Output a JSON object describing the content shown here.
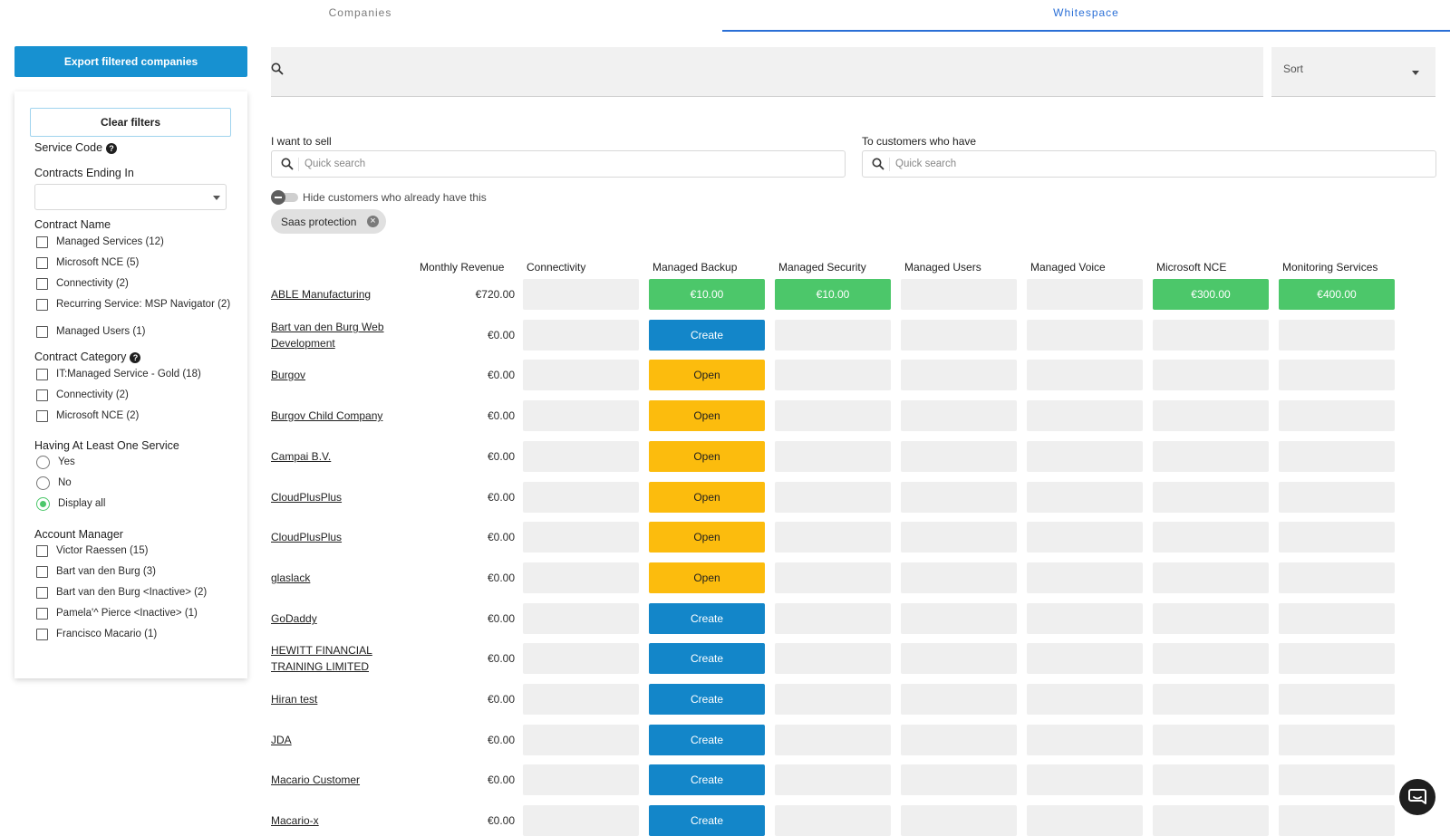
{
  "tabs": {
    "companies": "Companies",
    "whitespace": "Whitespace"
  },
  "sidebar": {
    "export_label": "Export filtered companies",
    "clear_label": "Clear filters",
    "service_code_title": "Service Code",
    "contracts_ending_title": "Contracts Ending In",
    "contracts_ending_value": "",
    "contract_name_title": "Contract Name",
    "contract_names": [
      {
        "label": "Managed Services (12)",
        "checked": false
      },
      {
        "label": "Microsoft NCE (5)",
        "checked": false
      },
      {
        "label": "Connectivity (2)",
        "checked": false
      },
      {
        "label": "Recurring Service: MSP Navigator (2)",
        "checked": false
      },
      {
        "label": "Managed Users (1)",
        "checked": false
      }
    ],
    "contract_category_title": "Contract Category",
    "contract_categories": [
      {
        "label": "IT:Managed Service - Gold (18)",
        "checked": false
      },
      {
        "label": "Connectivity (2)",
        "checked": false
      },
      {
        "label": "Microsoft NCE (2)",
        "checked": false
      }
    ],
    "at_least_one_title": "Having At Least One Service",
    "at_least_one_options": [
      {
        "label": "Yes",
        "checked": false
      },
      {
        "label": "No",
        "checked": false
      },
      {
        "label": "Display all",
        "checked": true
      }
    ],
    "account_manager_title": "Account Manager",
    "account_managers": [
      {
        "label": "Victor Raessen (15)",
        "checked": false
      },
      {
        "label": "Bart van den Burg (3)",
        "checked": false
      },
      {
        "label": "Bart van den Burg <Inactive> (2)",
        "checked": false
      },
      {
        "label": "Pamela'^ Pierce <Inactive> (1)",
        "checked": false
      },
      {
        "label": "Francisco Macario (1)",
        "checked": false
      }
    ]
  },
  "search": {
    "value": "",
    "sort_label": "Sort"
  },
  "sell": {
    "label": "I want to sell",
    "placeholder": "Quick search"
  },
  "customers_have": {
    "label": "To customers who have",
    "placeholder": "Quick search"
  },
  "hide_toggle": {
    "label": "Hide customers who already have this",
    "on": false
  },
  "chip": {
    "label": "Saas protection"
  },
  "table": {
    "columns": [
      "Monthly Revenue",
      "Connectivity",
      "Managed Backup",
      "Managed Security",
      "Managed Users",
      "Managed Voice",
      "Microsoft NCE",
      "Monitoring Services"
    ],
    "rows": [
      {
        "company": "ABLE Manufacturing",
        "revenue": "€720.00",
        "cells": [
          {
            "kind": "empty",
            "text": ""
          },
          {
            "kind": "green",
            "text": "€10.00"
          },
          {
            "kind": "green",
            "text": "€10.00"
          },
          {
            "kind": "empty",
            "text": ""
          },
          {
            "kind": "empty",
            "text": ""
          },
          {
            "kind": "green",
            "text": "€300.00"
          },
          {
            "kind": "green",
            "text": "€400.00"
          }
        ]
      },
      {
        "company": "Bart van den Burg Web Development",
        "revenue": "€0.00",
        "cells": [
          {
            "kind": "empty",
            "text": ""
          },
          {
            "kind": "create",
            "text": "Create"
          },
          {
            "kind": "empty",
            "text": ""
          },
          {
            "kind": "empty",
            "text": ""
          },
          {
            "kind": "empty",
            "text": ""
          },
          {
            "kind": "empty",
            "text": ""
          },
          {
            "kind": "empty",
            "text": ""
          }
        ]
      },
      {
        "company": "Burgov",
        "revenue": "€0.00",
        "cells": [
          {
            "kind": "empty",
            "text": ""
          },
          {
            "kind": "open",
            "text": "Open"
          },
          {
            "kind": "empty",
            "text": ""
          },
          {
            "kind": "empty",
            "text": ""
          },
          {
            "kind": "empty",
            "text": ""
          },
          {
            "kind": "empty",
            "text": ""
          },
          {
            "kind": "empty",
            "text": ""
          }
        ]
      },
      {
        "company": "Burgov Child Company",
        "revenue": "€0.00",
        "cells": [
          {
            "kind": "empty",
            "text": ""
          },
          {
            "kind": "open",
            "text": "Open"
          },
          {
            "kind": "empty",
            "text": ""
          },
          {
            "kind": "empty",
            "text": ""
          },
          {
            "kind": "empty",
            "text": ""
          },
          {
            "kind": "empty",
            "text": ""
          },
          {
            "kind": "empty",
            "text": ""
          }
        ]
      },
      {
        "company": "Campai B.V.",
        "revenue": "€0.00",
        "cells": [
          {
            "kind": "empty",
            "text": ""
          },
          {
            "kind": "open",
            "text": "Open"
          },
          {
            "kind": "empty",
            "text": ""
          },
          {
            "kind": "empty",
            "text": ""
          },
          {
            "kind": "empty",
            "text": ""
          },
          {
            "kind": "empty",
            "text": ""
          },
          {
            "kind": "empty",
            "text": ""
          }
        ]
      },
      {
        "company": "CloudPlusPlus",
        "revenue": "€0.00",
        "cells": [
          {
            "kind": "empty",
            "text": ""
          },
          {
            "kind": "open",
            "text": "Open"
          },
          {
            "kind": "empty",
            "text": ""
          },
          {
            "kind": "empty",
            "text": ""
          },
          {
            "kind": "empty",
            "text": ""
          },
          {
            "kind": "empty",
            "text": ""
          },
          {
            "kind": "empty",
            "text": ""
          }
        ]
      },
      {
        "company": "CloudPlusPlus",
        "revenue": "€0.00",
        "cells": [
          {
            "kind": "empty",
            "text": ""
          },
          {
            "kind": "open",
            "text": "Open"
          },
          {
            "kind": "empty",
            "text": ""
          },
          {
            "kind": "empty",
            "text": ""
          },
          {
            "kind": "empty",
            "text": ""
          },
          {
            "kind": "empty",
            "text": ""
          },
          {
            "kind": "empty",
            "text": ""
          }
        ]
      },
      {
        "company": "glaslack",
        "revenue": "€0.00",
        "cells": [
          {
            "kind": "empty",
            "text": ""
          },
          {
            "kind": "open",
            "text": "Open"
          },
          {
            "kind": "empty",
            "text": ""
          },
          {
            "kind": "empty",
            "text": ""
          },
          {
            "kind": "empty",
            "text": ""
          },
          {
            "kind": "empty",
            "text": ""
          },
          {
            "kind": "empty",
            "text": ""
          }
        ]
      },
      {
        "company": "GoDaddy",
        "revenue": "€0.00",
        "cells": [
          {
            "kind": "empty",
            "text": ""
          },
          {
            "kind": "create",
            "text": "Create"
          },
          {
            "kind": "empty",
            "text": ""
          },
          {
            "kind": "empty",
            "text": ""
          },
          {
            "kind": "empty",
            "text": ""
          },
          {
            "kind": "empty",
            "text": ""
          },
          {
            "kind": "empty",
            "text": ""
          }
        ]
      },
      {
        "company": "HEWITT FINANCIAL TRAINING LIMITED",
        "revenue": "€0.00",
        "cells": [
          {
            "kind": "empty",
            "text": ""
          },
          {
            "kind": "create",
            "text": "Create"
          },
          {
            "kind": "empty",
            "text": ""
          },
          {
            "kind": "empty",
            "text": ""
          },
          {
            "kind": "empty",
            "text": ""
          },
          {
            "kind": "empty",
            "text": ""
          },
          {
            "kind": "empty",
            "text": ""
          }
        ]
      },
      {
        "company": "Hiran test",
        "revenue": "€0.00",
        "cells": [
          {
            "kind": "empty",
            "text": ""
          },
          {
            "kind": "create",
            "text": "Create"
          },
          {
            "kind": "empty",
            "text": ""
          },
          {
            "kind": "empty",
            "text": ""
          },
          {
            "kind": "empty",
            "text": ""
          },
          {
            "kind": "empty",
            "text": ""
          },
          {
            "kind": "empty",
            "text": ""
          }
        ]
      },
      {
        "company": "JDA",
        "revenue": "€0.00",
        "cells": [
          {
            "kind": "empty",
            "text": ""
          },
          {
            "kind": "create",
            "text": "Create"
          },
          {
            "kind": "empty",
            "text": ""
          },
          {
            "kind": "empty",
            "text": ""
          },
          {
            "kind": "empty",
            "text": ""
          },
          {
            "kind": "empty",
            "text": ""
          },
          {
            "kind": "empty",
            "text": ""
          }
        ]
      },
      {
        "company": "Macario Customer",
        "revenue": "€0.00",
        "cells": [
          {
            "kind": "empty",
            "text": ""
          },
          {
            "kind": "create",
            "text": "Create"
          },
          {
            "kind": "empty",
            "text": ""
          },
          {
            "kind": "empty",
            "text": ""
          },
          {
            "kind": "empty",
            "text": ""
          },
          {
            "kind": "empty",
            "text": ""
          },
          {
            "kind": "empty",
            "text": ""
          }
        ]
      },
      {
        "company": "Macario-x",
        "revenue": "€0.00",
        "cells": [
          {
            "kind": "empty",
            "text": ""
          },
          {
            "kind": "create",
            "text": "Create"
          },
          {
            "kind": "empty",
            "text": ""
          },
          {
            "kind": "empty",
            "text": ""
          },
          {
            "kind": "empty",
            "text": ""
          },
          {
            "kind": "empty",
            "text": ""
          },
          {
            "kind": "empty",
            "text": ""
          }
        ]
      }
    ]
  },
  "colors": {
    "accent": "#1791d1",
    "tab_active": "#2a6fd6",
    "green": "#4cc76a",
    "create": "#1386c9",
    "open": "#fcbc0d",
    "empty": "#efefef"
  },
  "icons": {
    "search": "search-icon",
    "help": "help-icon",
    "close": "close-icon",
    "chat": "chat-icon"
  }
}
